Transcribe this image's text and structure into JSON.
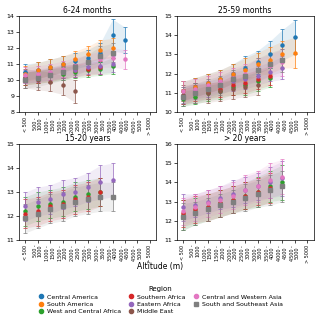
{
  "chart_data": [
    {
      "type": "line",
      "title": "6-24 months",
      "line_style": "none",
      "categories": [
        "< 500",
        "500 -\n1000",
        "1000 -\n1500",
        "1500 -\n2000",
        "2000 -\n2500",
        "2500 -\n3000",
        "3000 -\n3500",
        "3500 -\n4000",
        "4000 -\n4500",
        "4500 -\n5000",
        "> 5000"
      ],
      "ylim": [
        8,
        14
      ],
      "yticks": [
        8,
        9,
        10,
        11,
        12,
        13,
        14
      ],
      "series": [
        {
          "name": "Central America",
          "marker": "circle",
          "values": [
            10.5,
            10.6,
            10.8,
            11.0,
            11.2,
            11.4,
            11.7,
            12.8,
            12.5,
            null,
            null
          ],
          "errors": [
            0.5,
            0.5,
            0.5,
            0.5,
            0.5,
            0.5,
            0.6,
            1.0,
            0.8,
            null,
            null
          ]
        },
        {
          "name": "South America",
          "marker": "circle",
          "values": [
            10.4,
            10.6,
            10.8,
            11.0,
            11.3,
            11.6,
            11.9,
            12.0,
            null,
            null,
            null
          ],
          "errors": [
            0.5,
            0.5,
            0.5,
            0.5,
            0.5,
            0.5,
            0.6,
            0.6,
            null,
            null,
            null
          ]
        },
        {
          "name": "West and Central Africa",
          "marker": "circle",
          "values": [
            10.1,
            10.2,
            10.3,
            10.4,
            10.5,
            10.6,
            10.7,
            10.9,
            null,
            null,
            null
          ],
          "errors": [
            0.4,
            0.4,
            0.4,
            0.4,
            0.4,
            0.4,
            0.4,
            0.5,
            null,
            null,
            null
          ]
        },
        {
          "name": "Southern Africa",
          "marker": "circle",
          "values": [
            10.1,
            10.2,
            10.3,
            10.5,
            10.6,
            10.7,
            10.8,
            null,
            null,
            null,
            null
          ],
          "errors": [
            0.4,
            0.4,
            0.4,
            0.4,
            0.4,
            0.4,
            0.4,
            null,
            null,
            null,
            null
          ]
        },
        {
          "name": "Eastern Africa",
          "marker": "circle",
          "values": [
            10.2,
            10.3,
            10.4,
            10.5,
            10.6,
            10.8,
            10.9,
            11.0,
            null,
            null,
            null
          ],
          "errors": [
            0.4,
            0.4,
            0.4,
            0.4,
            0.4,
            0.4,
            0.5,
            0.5,
            null,
            null,
            null
          ]
        },
        {
          "name": "Middle East",
          "marker": "circle",
          "values": [
            10.1,
            10.0,
            9.9,
            9.7,
            9.3,
            null,
            null,
            null,
            null,
            null,
            null
          ],
          "errors": [
            0.6,
            0.6,
            0.6,
            0.6,
            0.7,
            null,
            null,
            null,
            null,
            null,
            null
          ]
        },
        {
          "name": "Central and Western Asia",
          "marker": "circle",
          "values": [
            10.3,
            10.4,
            10.5,
            10.7,
            10.9,
            11.1,
            11.3,
            11.4,
            11.3,
            null,
            null
          ],
          "errors": [
            0.5,
            0.5,
            0.5,
            0.5,
            0.5,
            0.5,
            0.5,
            0.6,
            0.6,
            null,
            null
          ]
        },
        {
          "name": "South and Southeast Asia",
          "marker": "square",
          "values": [
            10.0,
            10.1,
            10.3,
            10.5,
            10.8,
            11.1,
            11.5,
            11.7,
            null,
            null,
            null
          ],
          "errors": [
            0.5,
            0.5,
            0.5,
            0.5,
            0.5,
            0.5,
            0.6,
            0.6,
            null,
            null,
            null
          ]
        }
      ]
    },
    {
      "type": "line",
      "title": "25-59 months",
      "line_style": "none",
      "categories": [
        "< 500",
        "500 -\n1000",
        "1000 -\n1500",
        "1500 -\n2000",
        "2000 -\n2500",
        "2500 -\n3000",
        "3000 -\n3500",
        "3500 -\n4000",
        "4000 -\n4500",
        "4500 -\n5000",
        "> 5000"
      ],
      "ylim": [
        10,
        15
      ],
      "yticks": [
        10,
        11,
        12,
        13,
        14,
        15
      ],
      "series": [
        {
          "name": "Central America",
          "marker": "circle",
          "values": [
            11.1,
            11.3,
            11.5,
            11.7,
            12.0,
            12.3,
            12.6,
            13.0,
            13.5,
            13.9,
            null
          ],
          "errors": [
            0.5,
            0.5,
            0.5,
            0.5,
            0.5,
            0.6,
            0.6,
            0.7,
            0.8,
            0.9,
            null
          ]
        },
        {
          "name": "South America",
          "marker": "circle",
          "values": [
            11.1,
            11.3,
            11.5,
            11.7,
            12.0,
            12.2,
            12.5,
            12.7,
            13.0,
            13.1,
            null
          ],
          "errors": [
            0.5,
            0.5,
            0.5,
            0.5,
            0.5,
            0.6,
            0.6,
            0.7,
            0.7,
            0.8,
            null
          ]
        },
        {
          "name": "West and Central Africa",
          "marker": "circle",
          "values": [
            10.7,
            10.8,
            11.0,
            11.1,
            11.3,
            11.4,
            11.6,
            11.8,
            null,
            null,
            null
          ],
          "errors": [
            0.4,
            0.4,
            0.4,
            0.4,
            0.4,
            0.5,
            0.5,
            0.5,
            null,
            null,
            null
          ]
        },
        {
          "name": "Southern Africa",
          "marker": "circle",
          "values": [
            10.8,
            11.0,
            11.1,
            11.2,
            11.4,
            11.5,
            11.7,
            11.9,
            null,
            null,
            null
          ],
          "errors": [
            0.4,
            0.4,
            0.4,
            0.4,
            0.5,
            0.5,
            0.5,
            0.5,
            null,
            null,
            null
          ]
        },
        {
          "name": "Eastern Africa",
          "marker": "circle",
          "values": [
            10.9,
            11.1,
            11.2,
            11.4,
            11.6,
            11.7,
            11.9,
            12.1,
            12.3,
            null,
            null
          ],
          "errors": [
            0.4,
            0.4,
            0.4,
            0.4,
            0.5,
            0.5,
            0.5,
            0.5,
            0.6,
            null,
            null
          ]
        },
        {
          "name": "Middle East",
          "marker": "circle",
          "values": [
            10.9,
            11.0,
            11.0,
            11.1,
            11.2,
            11.3,
            11.4,
            null,
            null,
            null,
            null
          ],
          "errors": [
            0.5,
            0.5,
            0.5,
            0.5,
            0.5,
            0.5,
            0.5,
            null,
            null,
            null,
            null
          ]
        },
        {
          "name": "Central and Western Asia",
          "marker": "circle",
          "values": [
            11.1,
            11.2,
            11.4,
            11.6,
            11.8,
            12.0,
            12.2,
            12.4,
            12.6,
            null,
            null
          ],
          "errors": [
            0.5,
            0.5,
            0.5,
            0.5,
            0.5,
            0.5,
            0.6,
            0.6,
            0.7,
            null,
            null
          ]
        },
        {
          "name": "South and Southeast Asia",
          "marker": "square",
          "values": [
            10.8,
            11.0,
            11.2,
            11.4,
            11.7,
            11.9,
            12.2,
            12.5,
            12.7,
            null,
            null
          ],
          "errors": [
            0.5,
            0.5,
            0.5,
            0.5,
            0.5,
            0.5,
            0.6,
            0.6,
            0.6,
            null,
            null
          ]
        }
      ]
    },
    {
      "type": "line",
      "title": "15-20 years",
      "line_style": "none",
      "categories": [
        "< 500",
        "500 -\n1000",
        "1000 -\n1500",
        "1500 -\n2000",
        "2000 -\n2500",
        "2500 -\n3000",
        "3000 -\n3500",
        "3500 -\n4000",
        "4000 -\n4500",
        "4500 -\n5000",
        "> 5000"
      ],
      "ylim": [
        11,
        15
      ],
      "yticks": [
        11,
        12,
        13,
        14,
        15
      ],
      "series": [
        {
          "name": "West and Central Africa",
          "marker": "circle",
          "values": [
            12.2,
            12.4,
            12.5,
            12.6,
            12.8,
            12.9,
            13.0,
            null,
            null,
            null,
            null
          ],
          "errors": [
            0.6,
            0.6,
            0.6,
            0.6,
            0.6,
            0.6,
            0.6,
            null,
            null,
            null,
            null
          ]
        },
        {
          "name": "Southern Africa",
          "marker": "circle",
          "values": [
            12.1,
            12.2,
            12.4,
            12.5,
            12.7,
            12.8,
            13.0,
            null,
            null,
            null,
            null
          ],
          "errors": [
            0.6,
            0.6,
            0.6,
            0.6,
            0.6,
            0.6,
            0.6,
            null,
            null,
            null,
            null
          ]
        },
        {
          "name": "Eastern Africa",
          "marker": "circle",
          "values": [
            12.4,
            12.6,
            12.7,
            12.9,
            13.0,
            13.2,
            13.4,
            13.5,
            null,
            null,
            null
          ],
          "errors": [
            0.6,
            0.6,
            0.6,
            0.6,
            0.6,
            0.6,
            0.7,
            0.7,
            null,
            null,
            null
          ]
        },
        {
          "name": "South and Southeast Asia",
          "marker": "square",
          "values": [
            11.9,
            12.1,
            12.3,
            12.4,
            12.6,
            12.7,
            12.8,
            12.8,
            null,
            null,
            null
          ],
          "errors": [
            0.6,
            0.6,
            0.6,
            0.6,
            0.6,
            0.6,
            0.6,
            0.6,
            null,
            null,
            null
          ]
        }
      ]
    },
    {
      "type": "line",
      "title": "> 20 years",
      "line_style": "none",
      "categories": [
        "< 500",
        "500 -\n1000",
        "1000 -\n1500",
        "1500 -\n2000",
        "2000 -\n2500",
        "2500 -\n3000",
        "3000 -\n3500",
        "3500 -\n4000",
        "4000 -\n4500",
        "4500 -\n5000",
        "> 5000"
      ],
      "ylim": [
        11,
        16
      ],
      "yticks": [
        11,
        12,
        13,
        14,
        15,
        16
      ],
      "series": [
        {
          "name": "West and Central Africa",
          "marker": "circle",
          "values": [
            12.3,
            12.5,
            12.7,
            12.9,
            13.1,
            13.3,
            13.5,
            13.8,
            14.0,
            null,
            null
          ],
          "errors": [
            0.8,
            0.7,
            0.7,
            0.7,
            0.7,
            0.7,
            0.8,
            0.8,
            0.9,
            null,
            null
          ]
        },
        {
          "name": "Southern Africa",
          "marker": "circle",
          "values": [
            12.4,
            12.6,
            12.7,
            12.9,
            13.1,
            13.3,
            13.5,
            13.7,
            null,
            null,
            null
          ],
          "errors": [
            0.7,
            0.7,
            0.7,
            0.7,
            0.7,
            0.7,
            0.7,
            0.8,
            null,
            null,
            null
          ]
        },
        {
          "name": "Eastern Africa",
          "marker": "circle",
          "values": [
            12.7,
            12.8,
            13.0,
            13.2,
            13.4,
            13.6,
            13.8,
            14.0,
            14.2,
            null,
            null
          ],
          "errors": [
            0.7,
            0.6,
            0.6,
            0.6,
            0.7,
            0.7,
            0.7,
            0.8,
            0.9,
            null,
            null
          ]
        },
        {
          "name": "Central and Western Asia",
          "marker": "circle",
          "values": [
            12.5,
            12.7,
            12.9,
            13.1,
            13.3,
            13.6,
            13.8,
            14.1,
            14.3,
            null,
            null
          ],
          "errors": [
            0.7,
            0.7,
            0.7,
            0.7,
            0.7,
            0.8,
            0.8,
            0.9,
            0.9,
            null,
            null
          ]
        },
        {
          "name": "South and Southeast Asia",
          "marker": "square",
          "values": [
            12.2,
            12.4,
            12.6,
            12.8,
            13.0,
            13.2,
            13.4,
            13.6,
            13.8,
            null,
            null
          ],
          "errors": [
            0.7,
            0.6,
            0.6,
            0.6,
            0.6,
            0.7,
            0.7,
            0.8,
            0.8,
            null,
            null
          ]
        }
      ]
    }
  ],
  "xlabel": "Altitude (m)",
  "legend_title": "Region"
}
